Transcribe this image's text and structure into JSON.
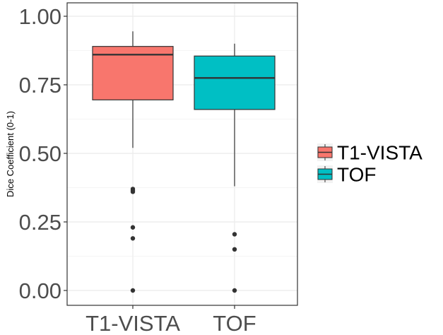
{
  "chart_data": {
    "type": "boxplot",
    "title": "",
    "xlabel": "",
    "ylabel": "Dice Coefficient (0-1)",
    "ylim": [
      0,
      1.03
    ],
    "y_ticks": [
      "0.00",
      "0.25",
      "0.50",
      "0.75",
      "1.00"
    ],
    "y_tick_values": [
      0,
      0.25,
      0.5,
      0.75,
      1.0
    ],
    "categories": [
      "T1-VISTA",
      "TOF"
    ],
    "grid": true,
    "legend_position": "right",
    "series": [
      {
        "name": "T1-VISTA",
        "color": "#F8766D",
        "whisker_low": 0.52,
        "q1": 0.695,
        "median": 0.86,
        "q3": 0.89,
        "whisker_high": 0.945,
        "outliers": [
          0.37,
          0.365,
          0.36,
          0.23,
          0.19,
          0.0
        ]
      },
      {
        "name": "TOF",
        "color": "#00BFC4",
        "whisker_low": 0.38,
        "q1": 0.66,
        "median": 0.775,
        "q3": 0.855,
        "whisker_high": 0.9,
        "outliers": [
          0.205,
          0.15,
          0.0
        ]
      }
    ]
  }
}
